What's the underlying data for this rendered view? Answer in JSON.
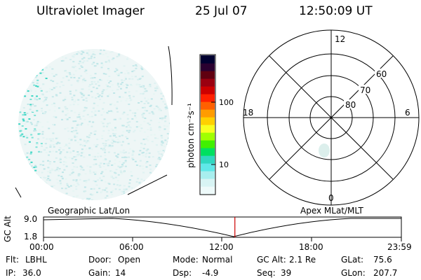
{
  "header": {
    "title": "Ultraviolet Imager",
    "date": "25 Jul 07",
    "time": "12:50:09 UT"
  },
  "colorbar": {
    "unit_label": "photon cm⁻²s⁻¹",
    "ticks": [
      "100",
      "10"
    ],
    "colors": [
      "#000030",
      "#2a0030",
      "#600010",
      "#9a0010",
      "#cc0000",
      "#ff2000",
      "#ff6000",
      "#ff9c00",
      "#ffd000",
      "#f8ff20",
      "#a0ff00",
      "#40f000",
      "#00e060",
      "#30d8c0",
      "#60e8e8",
      "#a8eeee",
      "#d8f4f4",
      "#eefafa"
    ]
  },
  "polar_plot": {
    "mlt_labels": [
      "12",
      "18",
      "6",
      "0"
    ],
    "lat_labels": [
      "60",
      "70",
      "80"
    ]
  },
  "timeline": {
    "left_label": "Geographic Lat/Lon",
    "right_label": "Apex MLat/MLT",
    "axis_label": "GC Alt",
    "y_ticks": [
      "9.0",
      "1.8"
    ],
    "x_ticks": [
      "00:00",
      "06:00",
      "12:00",
      "18:00",
      "23:59"
    ],
    "current_time_fraction": 0.5348,
    "marker_color": "#cc0000"
  },
  "info": {
    "row1": [
      {
        "label": "Flt:",
        "value": "LBHL"
      },
      {
        "label": "Door:",
        "value": "Open"
      },
      {
        "label": "Mode:",
        "value": "Normal"
      },
      {
        "label": "GC Alt:",
        "value": "2.1 Re"
      },
      {
        "label": "GLat:",
        "value": "75.6"
      }
    ],
    "row2": [
      {
        "label": "IP:",
        "value": "36.0"
      },
      {
        "label": "Gain:",
        "value": "14"
      },
      {
        "label": "Dsp:",
        "value": "-4.9"
      },
      {
        "label": "Seq:",
        "value": "39"
      },
      {
        "label": "GLon:",
        "value": "207.7"
      }
    ]
  }
}
